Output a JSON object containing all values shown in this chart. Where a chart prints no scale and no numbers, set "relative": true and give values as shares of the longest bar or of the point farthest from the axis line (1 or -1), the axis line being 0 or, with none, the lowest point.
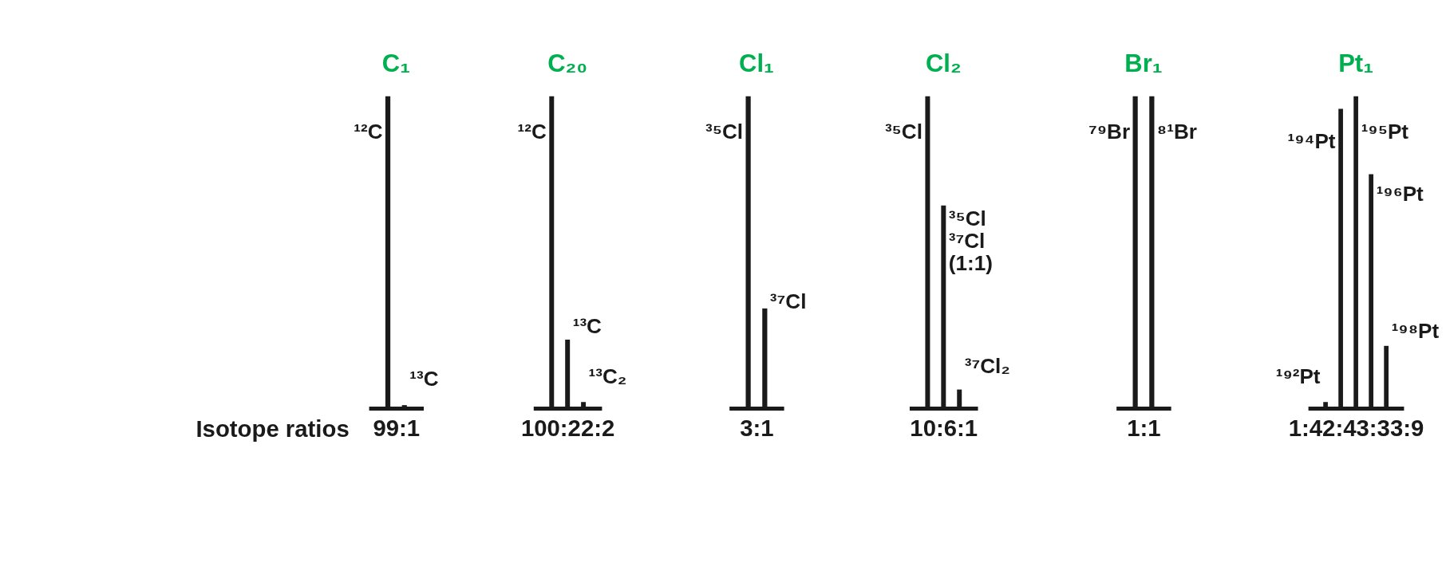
{
  "chart_data": [
    {
      "type": "bar",
      "title": "C₁",
      "xlabel": "99:1",
      "ylabel": "Isotope ratios",
      "categories": [
        null,
        null
      ],
      "relative": true,
      "annotations": [
        "¹²C",
        "¹³C"
      ],
      "series": [
        {
          "color": "#1a1a1a",
          "values": [
            1,
            0.01
          ]
        }
      ]
    },
    {
      "type": "bar",
      "title": "C₂₀",
      "xlabel": "100:22:2",
      "categories": [
        null,
        null,
        null
      ],
      "relative": true,
      "annotations": [
        "¹²C",
        "¹³C",
        "¹³C₂"
      ],
      "series": [
        {
          "color": "#1a1a1a",
          "values": [
            1,
            0.22,
            0.02
          ]
        }
      ]
    },
    {
      "type": "bar",
      "title": "Cl₁",
      "xlabel": "3:1",
      "categories": [
        null,
        null
      ],
      "relative": true,
      "annotations": [
        "³⁵Cl",
        "³⁷Cl"
      ],
      "series": [
        {
          "color": "#1a1a1a",
          "values": [
            1,
            0.32
          ]
        }
      ]
    },
    {
      "type": "bar",
      "title": "Cl₂",
      "xlabel": "10:6:1",
      "categories": [
        null,
        null,
        null
      ],
      "relative": true,
      "annotations": [
        "³⁵Cl",
        "³⁵Cl ³⁷Cl (1:1)",
        "³⁷Cl₂"
      ],
      "series": [
        {
          "color": "#1a1a1a",
          "values": [
            1,
            0.65,
            0.06
          ]
        }
      ]
    },
    {
      "type": "bar",
      "title": "Br₁",
      "xlabel": "1:1",
      "categories": [
        null,
        null
      ],
      "relative": true,
      "annotations": [
        "⁷⁹Br",
        "⁸¹Br"
      ],
      "series": [
        {
          "color": "#1a1a1a",
          "values": [
            1,
            1
          ]
        }
      ]
    },
    {
      "type": "bar",
      "title": "Pt₁",
      "xlabel": "1:42:43:33:9",
      "categories": [
        null,
        null,
        null,
        null,
        null
      ],
      "relative": true,
      "annotations": [
        "¹⁹²Pt",
        "¹⁹⁴Pt",
        "¹⁹⁵Pt",
        "¹⁹⁶Pt",
        "¹⁹⁸Pt"
      ],
      "series": [
        {
          "color": "#1a1a1a",
          "values": [
            0.02,
            0.96,
            1,
            0.75,
            0.2
          ]
        }
      ]
    }
  ]
}
